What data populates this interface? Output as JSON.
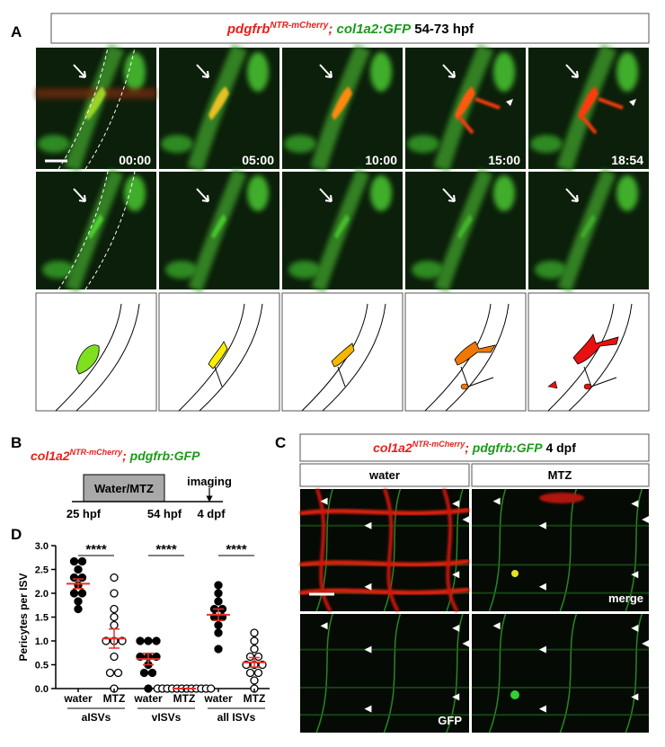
{
  "panel_a": {
    "label": "A",
    "title": {
      "gene1": "pdgfrb",
      "sup1": "NTR-mCherry",
      "sep": ";",
      "gene2": "col1a2:GFP",
      "stage": "54-73 hpf"
    },
    "timestamps": [
      "00:00",
      "05:00",
      "10:00",
      "15:00",
      "18:54"
    ]
  },
  "panel_b": {
    "label": "B",
    "title": {
      "gene1": "col1a2",
      "sup1": "NTR-mCherry",
      "sep": ";",
      "gene2": "pdgfrb:GFP"
    },
    "treatment": "Water/MTZ",
    "event": "imaging",
    "timepoints": [
      "25 hpf",
      "54 hpf",
      "4 dpf"
    ]
  },
  "panel_c": {
    "label": "C",
    "title": {
      "gene1": "col1a2",
      "sup1": "NTR-mCherry",
      "sep": ";",
      "gene2": "pdgfrb:GFP",
      "stage": "4 dpf"
    },
    "columns": [
      "water",
      "MTZ"
    ],
    "rows": [
      "merge",
      "GFP"
    ]
  },
  "panel_d": {
    "label": "D"
  },
  "chart_data": {
    "type": "dot",
    "ylabel": "Pericytes per ISV",
    "ylim": [
      0,
      3
    ],
    "yticks": [
      {
        "value": 0,
        "label": "0.0"
      },
      0.5,
      {
        "value": 1,
        "label": "1.0"
      },
      1.5,
      {
        "value": 2,
        "label": "2.0"
      },
      2.5,
      {
        "value": 3,
        "label": "3.0"
      }
    ],
    "mean_color": "#e8302a",
    "groups": [
      {
        "name": "aISVs",
        "significance": "****",
        "series": [
          {
            "name": "water",
            "marker": "filled",
            "values": [
              2.67,
              2.67,
              2.5,
              2.33,
              2.33,
              2.17,
              2.0,
              2.0,
              1.83,
              1.67
            ],
            "mean": 2.2,
            "sem": 0.1
          },
          {
            "name": "MTZ",
            "marker": "open",
            "values": [
              2.33,
              2.0,
              1.67,
              1.5,
              1.33,
              1.0,
              1.0,
              1.0,
              0.67,
              0.33,
              0.33,
              0.0
            ],
            "mean": 1.05,
            "sem": 0.2
          }
        ]
      },
      {
        "name": "vISVs",
        "significance": "****",
        "series": [
          {
            "name": "water",
            "marker": "filled",
            "values": [
              1.0,
              1.0,
              1.0,
              0.67,
              0.67,
              0.67,
              0.5,
              0.33,
              0.33,
              0.0
            ],
            "mean": 0.62,
            "sem": 0.12
          },
          {
            "name": "MTZ",
            "marker": "open",
            "values": [
              0,
              0,
              0,
              0,
              0,
              0,
              0,
              0,
              0,
              0,
              0,
              0
            ],
            "mean": 0,
            "sem": 0
          }
        ]
      },
      {
        "name": "all ISVs",
        "significance": "****",
        "series": [
          {
            "name": "water",
            "marker": "filled",
            "values": [
              2.17,
              2.0,
              1.83,
              1.67,
              1.67,
              1.5,
              1.5,
              1.33,
              1.17,
              0.83
            ],
            "mean": 1.55,
            "sem": 0.12
          },
          {
            "name": "MTZ",
            "marker": "open",
            "values": [
              1.17,
              1.0,
              0.83,
              0.67,
              0.67,
              0.5,
              0.5,
              0.5,
              0.33,
              0.33,
              0.17,
              0.0
            ],
            "mean": 0.55,
            "sem": 0.1
          }
        ]
      }
    ]
  }
}
